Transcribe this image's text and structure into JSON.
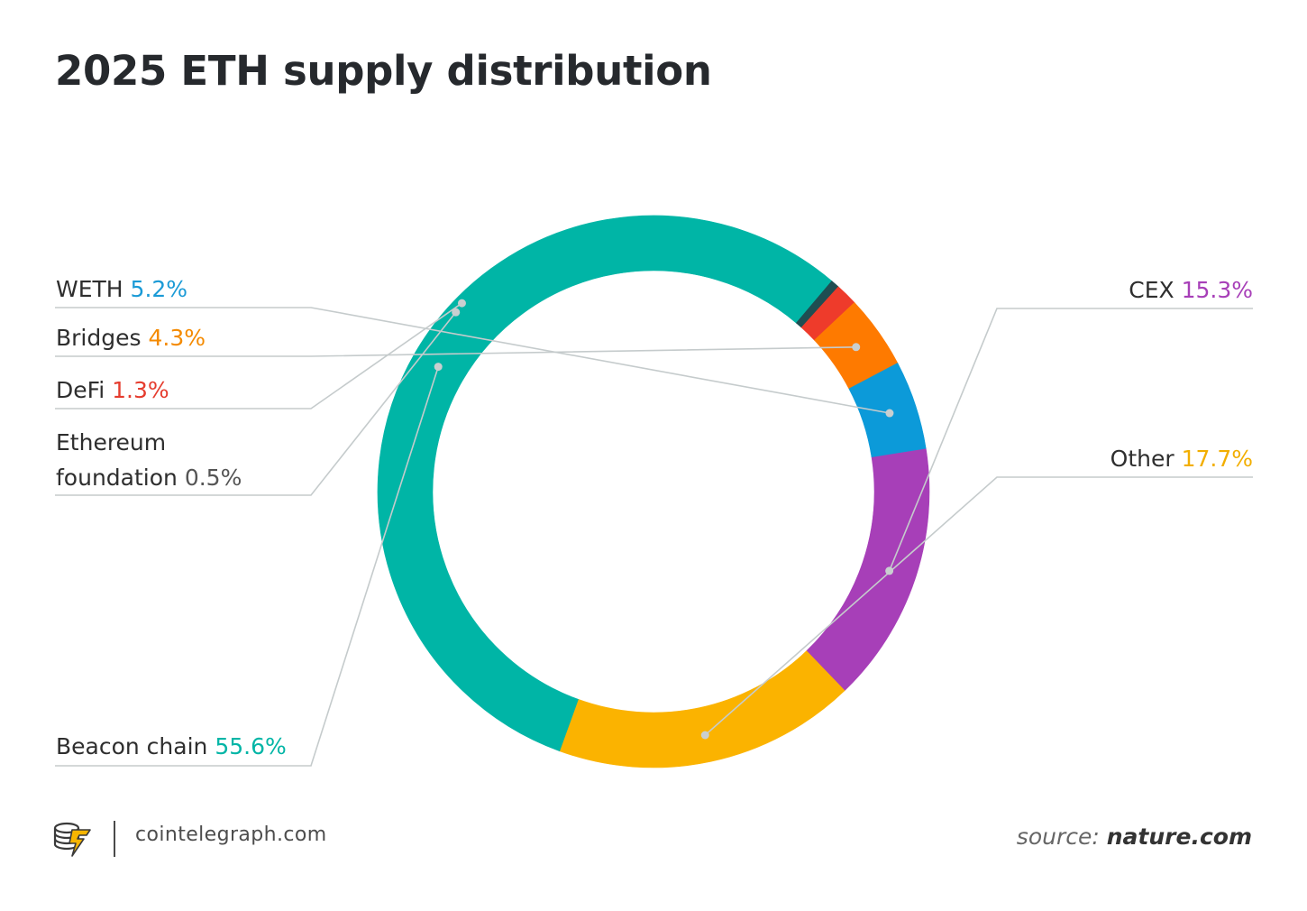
{
  "title": "2025 ETH supply distribution",
  "chart_data": {
    "type": "pie",
    "title": "2025 ETH supply distribution",
    "unit": "%",
    "slices": [
      {
        "label": "CEX",
        "value": 15.3,
        "value_label": "15.3%",
        "color": "#a73fb8",
        "label_color": "#a73fb8"
      },
      {
        "label": "Other",
        "value": 17.7,
        "value_label": "17.7%",
        "color": "#fbb300",
        "label_color": "#f2ae00"
      },
      {
        "label": "Beacon chain",
        "value": 55.6,
        "value_label": "55.6%",
        "color": "#00b5a6",
        "label_color": "#00b5a6"
      },
      {
        "label": "Ethereum foundation",
        "label_lines": [
          "Ethereum",
          "foundation"
        ],
        "value": 0.5,
        "value_label": "0.5%",
        "color": "#1f4e52",
        "label_color": "#555555"
      },
      {
        "label": "DeFi",
        "value": 1.3,
        "value_label": "1.3%",
        "color": "#ee3b2b",
        "label_color": "#e53c2e"
      },
      {
        "label": "Bridges",
        "value": 4.3,
        "value_label": "4.3%",
        "color": "#fe7a00",
        "label_color": "#f48a00"
      },
      {
        "label": "WETH",
        "value": 5.2,
        "value_label": "5.2%",
        "color": "#0c9ad9",
        "label_color": "#1a9ad6"
      }
    ]
  },
  "footer": {
    "site": "cointelegraph.com",
    "source_prefix": "source:",
    "source_name": "nature.com",
    "logo_icon": "cointelegraph-logo-icon"
  }
}
